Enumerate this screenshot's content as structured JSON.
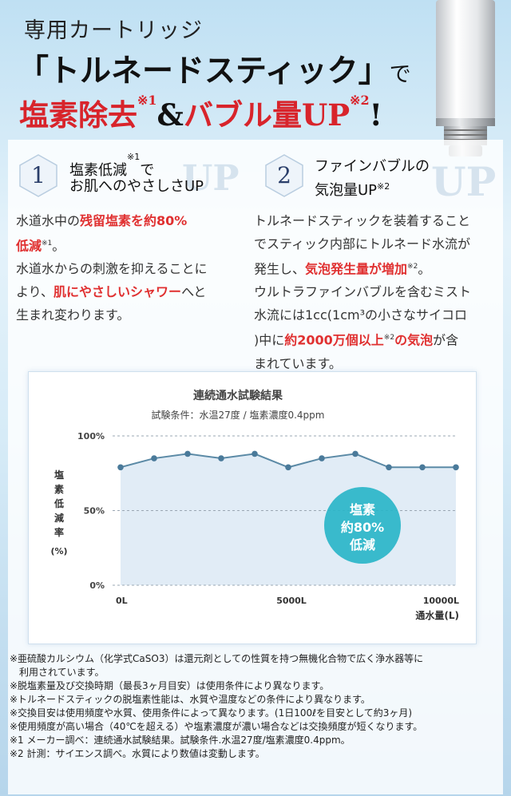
{
  "header": {
    "line1": "専用カートリッジ",
    "line2_main": "「トルネードスティック」",
    "line2_tail": "で",
    "line3_a": "塩素除去",
    "line3_a_note": "※1",
    "line3_amp": "&",
    "line3_b": "バブル量UP",
    "line3_b_note": "※2",
    "line3_bang": "!"
  },
  "features": [
    {
      "number": "1",
      "title_line1": "塩素低減",
      "title_note": "※1",
      "title_line1_tail": "で",
      "title_line2": "お肌へのやさしさUP",
      "deco": "UP",
      "body": [
        [
          {
            "t": "水道水中の"
          },
          {
            "t": "残留塩素を約80%",
            "red": true
          }
        ],
        [
          {
            "t": "低減",
            "red": true
          },
          {
            "t": "※1",
            "sup": true
          },
          {
            "t": "。"
          }
        ],
        [
          {
            "t": "水道水からの刺激を抑えることに"
          }
        ],
        [
          {
            "t": "より、"
          },
          {
            "t": "肌にやさしいシャワー",
            "red": true
          },
          {
            "t": "へと"
          }
        ],
        [
          {
            "t": "生まれ変わります。"
          }
        ]
      ]
    },
    {
      "number": "2",
      "title_line1": "ファインバブルの",
      "title_line2": "気泡量UP",
      "title_note": "※2",
      "deco": "UP",
      "body": [
        [
          {
            "t": "トルネードスティックを装着すること"
          }
        ],
        [
          {
            "t": "でスティック内部にトルネード水流が"
          }
        ],
        [
          {
            "t": "発生し、"
          },
          {
            "t": "気泡発生量が増加",
            "red": true
          },
          {
            "t": "※2",
            "sup": true
          },
          {
            "t": "。"
          }
        ],
        [
          {
            "t": "ウルトラファインバブルを含むミスト"
          }
        ],
        [
          {
            "t": "水流には1cc(1cm³の小さなサイコロ"
          }
        ],
        [
          {
            "t": ")中に"
          },
          {
            "t": "約2000万個以上",
            "red": true
          },
          {
            "t": "※2",
            "sup": true
          },
          {
            "t": "の気泡",
            "red": true
          },
          {
            "t": "が含"
          }
        ],
        [
          {
            "t": "まれています。"
          }
        ]
      ]
    }
  ],
  "chart_data": {
    "type": "line",
    "title": "連続通水試験結果",
    "subtitle": "試験条件：水温27度 / 塩素濃度0.4ppm",
    "ylabel_lines": [
      "塩",
      "素",
      "低",
      "減",
      "率"
    ],
    "ylabel_unit": "(%)",
    "xlabel": "通水量(L)",
    "y_ticks": [
      "100%",
      "50%",
      "0%"
    ],
    "x_ticks": [
      "0L",
      "5000L",
      "10000L"
    ],
    "ylim": [
      0,
      100
    ],
    "xlim": [
      0,
      10000
    ],
    "x": [
      0,
      1000,
      2000,
      3000,
      4000,
      5000,
      6000,
      7000,
      8000,
      9000,
      10000
    ],
    "values": [
      79,
      85,
      88,
      85,
      88,
      79,
      85,
      88,
      79,
      79,
      79
    ],
    "callout": [
      "塩素",
      "約80%",
      "低減"
    ],
    "colors": {
      "line": "#5b8aa6",
      "marker": "#4a7a9a",
      "fill": "#dce9f4",
      "callout": "#2ab5c8"
    }
  },
  "notes": [
    "※亜硫酸カルシウム（化学式CaSO3）は還元剤としての性質を持つ無機化合物で広く浄水器等に",
    "利用されています。",
    "※脱塩素量及び交換時期（最長3ヶ月目安）は使用条件により異なります。",
    "※トルネードスティックの脱塩素性能は、水質や温度などの条件により異なります。",
    "※交換目安は使用頻度や水質、使用条件によって異なります。(1日100ℓを目安として約3ヶ月)",
    "※使用頻度が高い場合（40℃を超える）や塩素濃度が濃い場合などは交換頻度が短くなります。",
    "※1 メーカー調べ：連続通水試験結果。試験条件.水温27度/塩素濃度0.4ppm。",
    "※2 計測：サイエンス調べ。水質により数値は変動します。"
  ]
}
